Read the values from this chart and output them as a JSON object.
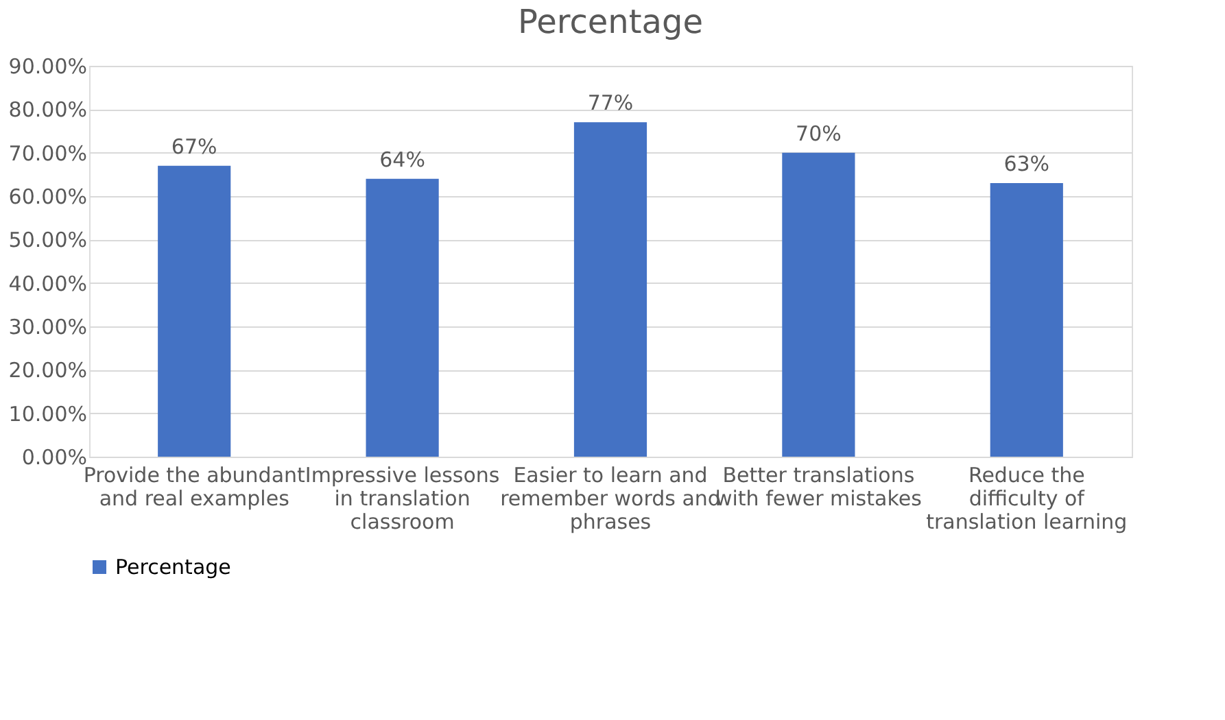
{
  "chart_data": {
    "type": "bar",
    "title": "Percentage",
    "categories": [
      "Provide the abundant and real examples",
      "Impressive lessons in translation classroom",
      "Easier to learn and remember words and phrases",
      "Better translations with fewer mistakes",
      "Reduce the difficulty of translation learning"
    ],
    "series": [
      {
        "name": "Percentage",
        "color": "#4472c4",
        "values": [
          67,
          64,
          77,
          70,
          63
        ]
      }
    ],
    "value_labels": [
      "67%",
      "64%",
      "77%",
      "70%",
      "63%"
    ],
    "ylim": [
      0,
      90
    ],
    "yticks": [
      {
        "value": 0,
        "label": "0.00%"
      },
      {
        "value": 10,
        "label": "10.00%"
      },
      {
        "value": 20,
        "label": "20.00%"
      },
      {
        "value": 30,
        "label": "30.00%"
      },
      {
        "value": 40,
        "label": "40.00%"
      },
      {
        "value": 50,
        "label": "50.00%"
      },
      {
        "value": 60,
        "label": "60.00%"
      },
      {
        "value": 70,
        "label": "70.00%"
      },
      {
        "value": 80,
        "label": "80.00%"
      },
      {
        "value": 90,
        "label": "90.00%"
      }
    ],
    "grid": "y",
    "legend": "bottom"
  }
}
